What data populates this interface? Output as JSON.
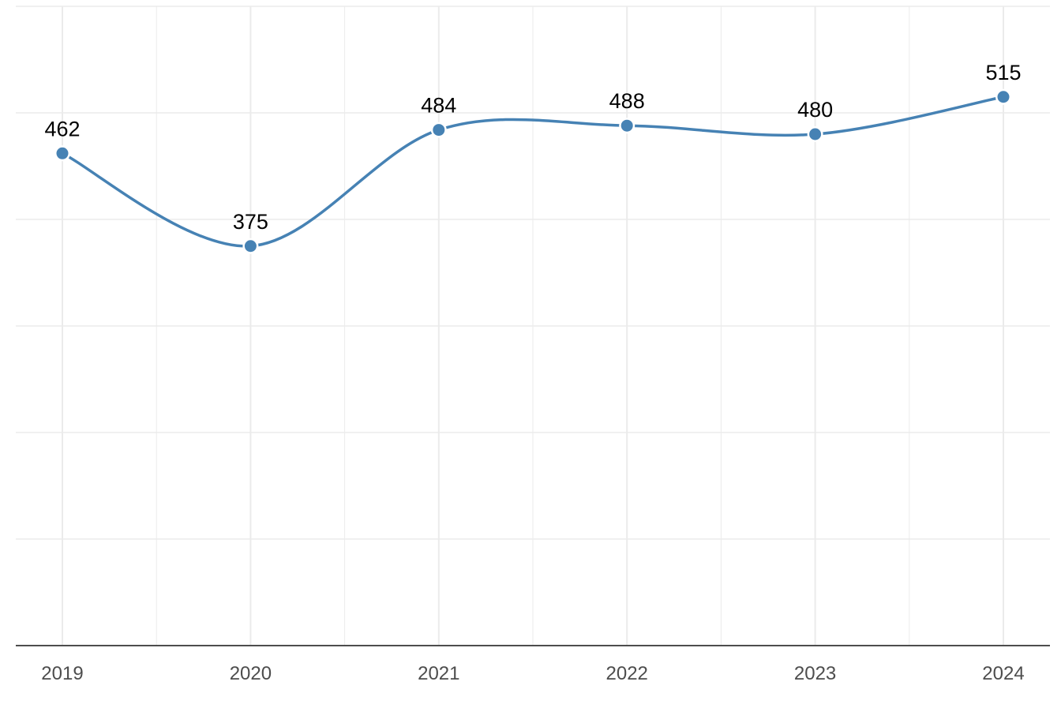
{
  "chart_data": {
    "type": "line",
    "x": [
      "2019",
      "2020",
      "2021",
      "2022",
      "2023",
      "2024"
    ],
    "series": [
      {
        "values": [
          462,
          375,
          484,
          488,
          480,
          515
        ]
      }
    ],
    "ylim": [
      0,
      600
    ],
    "y_gridlines": [
      0,
      100,
      200,
      300,
      400,
      500,
      600
    ],
    "y_tick_labels_visible": false,
    "grid": true,
    "curve": "smooth",
    "markers": true,
    "data_labels": true,
    "line_color": "#4682B4",
    "grid_color": "#EBEBEB",
    "axis_color": "#4D4D4D"
  }
}
